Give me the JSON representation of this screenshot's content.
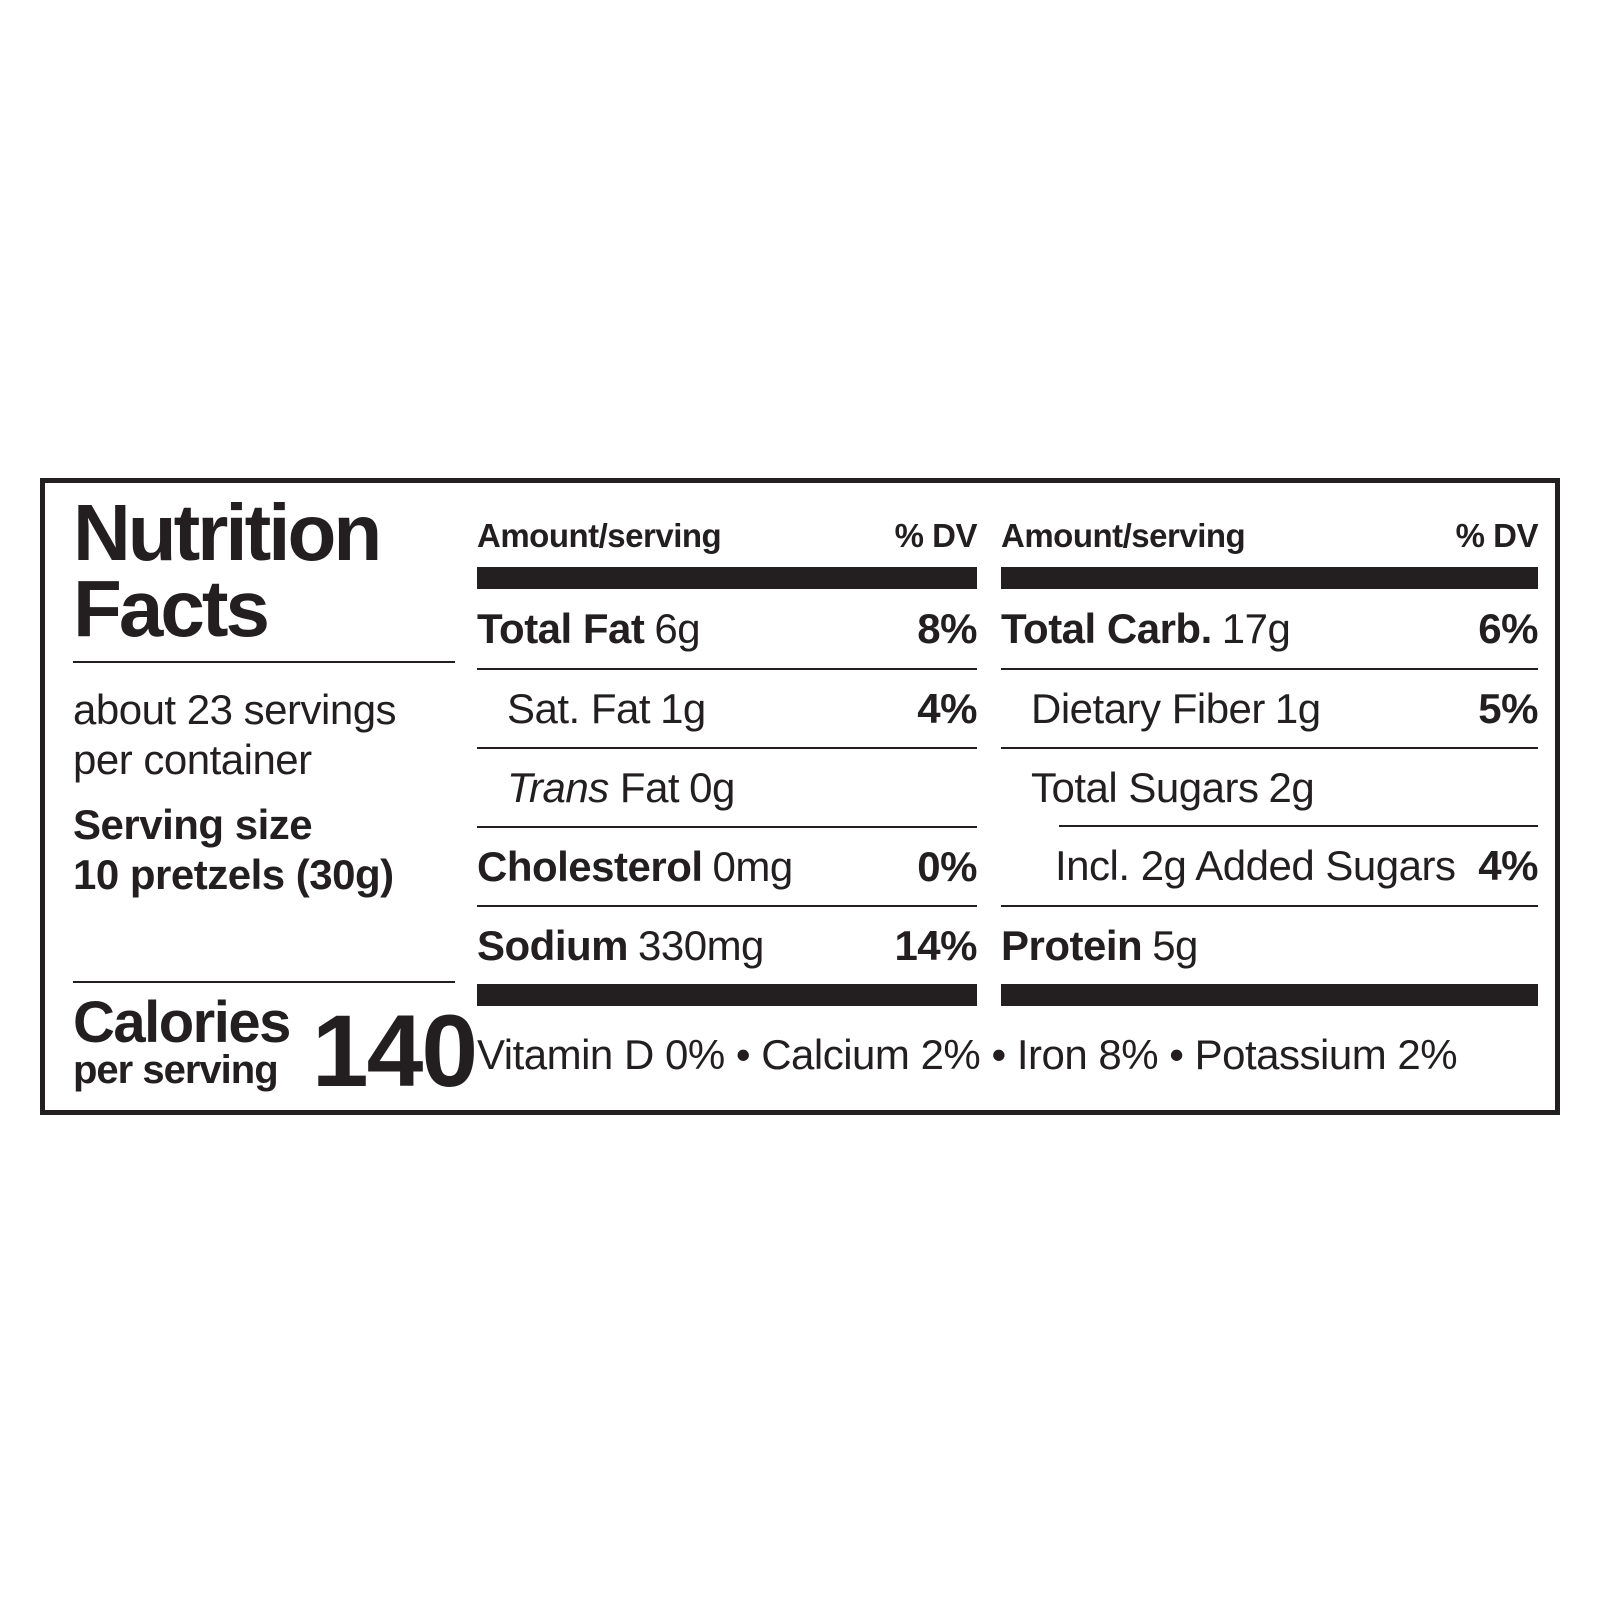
{
  "colors": {
    "ink": "#231f20",
    "background": "#ffffff"
  },
  "nutrition_label": {
    "title": "Nutrition Facts",
    "servings_per_container": "about 23 servings per container",
    "serving_size_label": "Serving size",
    "serving_size_value": "10 pretzels (30g)",
    "calories_label": "Calories",
    "calories_sublabel": "per serving",
    "calories_value": "140",
    "columns": [
      {
        "header": {
          "amount": "Amount/serving",
          "dv": "% DV"
        },
        "rows": [
          {
            "name": "Total Fat",
            "amount": "6g",
            "dv": "8%"
          },
          {
            "name": "Sat. Fat",
            "amount": "1g",
            "dv": "4%"
          },
          {
            "name_italic": "Trans",
            "name": "Fat",
            "amount": "0g",
            "dv": ""
          },
          {
            "name": "Cholesterol",
            "amount": "0mg",
            "dv": "0%"
          },
          {
            "name": "Sodium",
            "amount": "330mg",
            "dv": "14%"
          }
        ]
      },
      {
        "header": {
          "amount": "Amount/serving",
          "dv": "% DV"
        },
        "rows": [
          {
            "name": "Total Carb.",
            "amount": "17g",
            "dv": "6%"
          },
          {
            "name": "Dietary Fiber",
            "amount": "1g",
            "dv": "5%"
          },
          {
            "name": "Total Sugars",
            "amount": "2g",
            "dv": ""
          },
          {
            "name": "Incl. 2g Added Sugars",
            "amount": "",
            "dv": "4%"
          },
          {
            "name": "Protein",
            "amount": "5g",
            "dv": ""
          }
        ]
      }
    ],
    "footer": "Vitamin D 0% • Calcium 2% • Iron 8% • Potassium 2%"
  }
}
